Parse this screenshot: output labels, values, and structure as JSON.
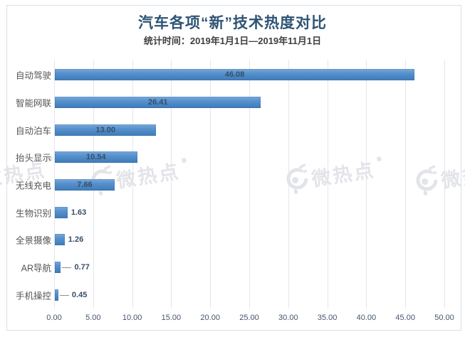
{
  "watermark": {
    "text": "微热点",
    "logo": "weibo-eye-icon",
    "color": "#E3E4E9",
    "instances": 4
  },
  "colors": {
    "bar_top": "#79A7D9",
    "bar_mid": "#5590CC",
    "bar_bottom": "#3E7BB8",
    "title": "#2F5475",
    "subtitle": "#3F3F3F",
    "value_label": "#374E68",
    "category_label": "#555555",
    "axis_label": "#44546A",
    "gridline": "#E4E6EC",
    "frame_border": "#D9DEE5",
    "background": "#FFFFFF"
  },
  "chart_data": {
    "type": "bar",
    "orientation": "horizontal",
    "title": "汽车各项“新”技术热度对比",
    "subtitle": "统计时间：2019年1月1日—2019年11月1日",
    "categories": [
      "自动驾驶",
      "智能网联",
      "自动泊车",
      "抬头显示",
      "无线充电",
      "生物识别",
      "全景摄像",
      "AR导航",
      "手机操控"
    ],
    "values": [
      46.08,
      26.41,
      13.0,
      10.54,
      7.66,
      1.63,
      1.26,
      0.77,
      0.45
    ],
    "value_labels": [
      "46.08",
      "26.41",
      "13.00",
      "10.54",
      "7.66",
      "1.63",
      "1.26",
      "0.77",
      "0.45"
    ],
    "xlabel": "",
    "ylabel": "",
    "xlim": [
      0,
      50
    ],
    "x_ticks": [
      "0.00",
      "5.00",
      "10.00",
      "15.00",
      "20.00",
      "25.00",
      "30.00",
      "35.00",
      "40.00",
      "45.00",
      "50.00"
    ],
    "grid": true,
    "legend": false
  }
}
